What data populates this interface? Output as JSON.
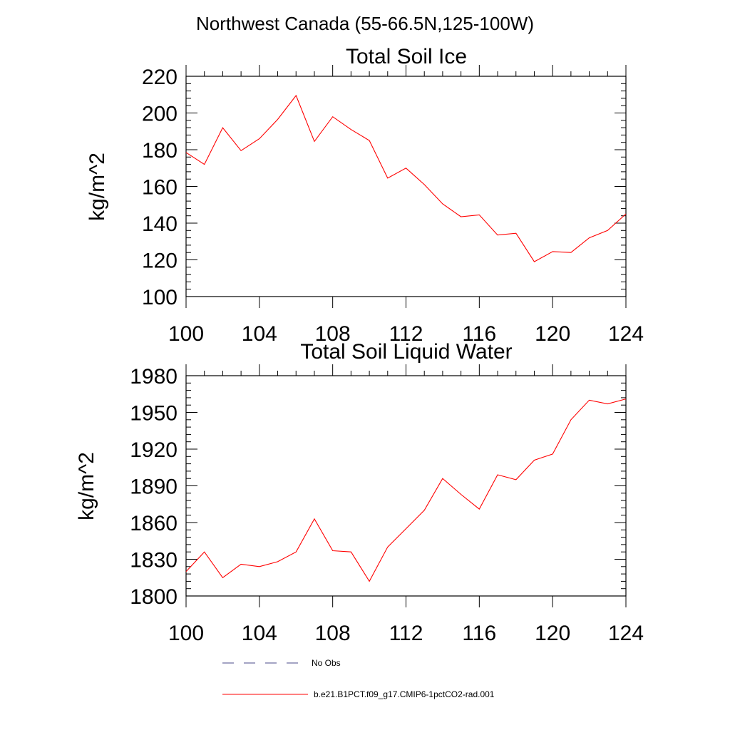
{
  "figure": {
    "suptitle": "Northwest Canada (55-66.5N,125-100W)"
  },
  "chart_data": [
    {
      "type": "line",
      "title": "Total Soil Ice",
      "xlabel": "",
      "ylabel": "kg/m^2",
      "xlim": [
        100,
        124
      ],
      "ylim": [
        100,
        220
      ],
      "xticks": [
        100,
        104,
        108,
        112,
        116,
        120,
        124
      ],
      "yticks": [
        100,
        120,
        140,
        160,
        180,
        200,
        220
      ],
      "y_minor_step": 4,
      "grid": false,
      "series": [
        {
          "name": "b.e21.B1PCT.f09_g17.CMIP6-1pctCO2-rad.001",
          "color": "#ff0000",
          "x": [
            100,
            101,
            102,
            103,
            104,
            105,
            106,
            107,
            108,
            109,
            110,
            111,
            112,
            113,
            114,
            115,
            116,
            117,
            118,
            119,
            120,
            121,
            122,
            123,
            124
          ],
          "values": [
            178.5,
            172,
            192,
            179.5,
            186,
            196.5,
            209.5,
            184.5,
            198,
            191,
            185,
            164.5,
            170,
            161,
            150.5,
            143.5,
            144.5,
            133.5,
            134.5,
            119,
            124.5,
            124,
            132,
            136,
            145
          ]
        }
      ]
    },
    {
      "type": "line",
      "title": "Total Soil Liquid Water",
      "xlabel": "",
      "ylabel": "kg/m^2",
      "xlim": [
        100,
        124
      ],
      "ylim": [
        1800,
        1980
      ],
      "xticks": [
        100,
        104,
        108,
        112,
        116,
        120,
        124
      ],
      "yticks": [
        1800,
        1830,
        1860,
        1890,
        1920,
        1950,
        1980
      ],
      "y_minor_step": 6,
      "grid": false,
      "series": [
        {
          "name": "b.e21.B1PCT.f09_g17.CMIP6-1pctCO2-rad.001",
          "color": "#ff0000",
          "x": [
            100,
            101,
            102,
            103,
            104,
            105,
            106,
            107,
            108,
            109,
            110,
            111,
            112,
            113,
            114,
            115,
            116,
            117,
            118,
            119,
            120,
            121,
            122,
            123,
            124
          ],
          "values": [
            1820,
            1836,
            1815,
            1826,
            1824,
            1828,
            1836,
            1863,
            1837,
            1836,
            1812,
            1840,
            1855,
            1870,
            1896,
            1883,
            1871,
            1899,
            1895,
            1911,
            1916,
            1944,
            1960,
            1957,
            1961
          ]
        }
      ]
    }
  ],
  "legend": {
    "position": "bottom",
    "items": [
      {
        "label": "No Obs",
        "color": "#4a4a8a",
        "style": "dashed"
      },
      {
        "label": "b.e21.B1PCT.f09_g17.CMIP6-1pctCO2-rad.001",
        "color": "#ff0000",
        "style": "solid"
      }
    ]
  }
}
